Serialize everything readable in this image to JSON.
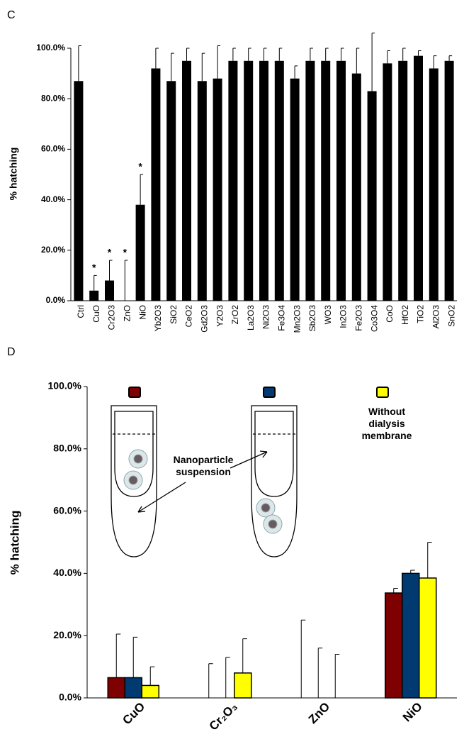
{
  "chart_data": [
    {
      "type": "bar",
      "panel": "C",
      "y_label": "% hatching",
      "categories": [
        "Ctrl",
        "CuO",
        "Cr2O3",
        "ZnO",
        "NiO",
        "Yb2O3",
        "SiO2",
        "CeO2",
        "Gd2O3",
        "Y2O3",
        "ZrO2",
        "La2O3",
        "Ni2O3",
        "Fe3O4",
        "Mn2O3",
        "Sb2O3",
        "WO3",
        "In2O3",
        "Fe2O3",
        "Co3O4",
        "CoO",
        "HfO2",
        "TiO2",
        "Al2O3",
        "SnO2"
      ],
      "series": [
        {
          "color": "#000000",
          "values": [
            87,
            4,
            8,
            0,
            38,
            92,
            87,
            95,
            87,
            88,
            95,
            95,
            95,
            95,
            88,
            95,
            95,
            95,
            90,
            83,
            94,
            95,
            97,
            92,
            95
          ],
          "errors": [
            14,
            6,
            8,
            16,
            12,
            8,
            11,
            5,
            11,
            13,
            5,
            5,
            5,
            5,
            5,
            5,
            5,
            5,
            10,
            23,
            5,
            5,
            2,
            5,
            2
          ]
        }
      ],
      "ylim": [
        0,
        100
      ],
      "yticks": [
        {
          "value": 0,
          "label": "0.0%"
        },
        {
          "value": 20,
          "label": "20.0%"
        },
        {
          "value": 40,
          "label": "40.0%"
        },
        {
          "value": 60,
          "label": "60.0%"
        },
        {
          "value": 80,
          "label": "80.0%"
        },
        {
          "value": 100,
          "label": "100.0%"
        }
      ],
      "annotations": [
        {
          "category": "CuO",
          "text": "*"
        },
        {
          "category": "Cr2O3",
          "text": "*"
        },
        {
          "category": "ZnO",
          "text": "*"
        },
        {
          "category": "NiO",
          "text": "*"
        }
      ]
    },
    {
      "type": "bar",
      "panel": "D",
      "y_label": "% hatching",
      "categories": [
        "CuO",
        "Cr₂O₃",
        "ZnO",
        "NiO"
      ],
      "series": [
        {
          "color": "#7f0000",
          "values": [
            6.5,
            0,
            0,
            33.7
          ],
          "errors": [
            14,
            11,
            25,
            1.5
          ]
        },
        {
          "color": "#003a70",
          "values": [
            6.5,
            0,
            0,
            40
          ],
          "errors": [
            13,
            13,
            16,
            1
          ]
        },
        {
          "name": "Without dialysis membrane",
          "color": "#ffff00",
          "values": [
            4,
            8,
            0,
            38.5
          ],
          "errors": [
            6,
            11,
            14,
            11.5
          ]
        }
      ],
      "ylim": [
        0,
        100
      ],
      "yticks": [
        {
          "value": 0,
          "label": "0.0%"
        },
        {
          "value": 20,
          "label": "20.0%"
        },
        {
          "value": 40,
          "label": "40.0%"
        },
        {
          "value": 60,
          "label": "60.0%"
        },
        {
          "value": 80,
          "label": "80.0%"
        },
        {
          "value": 100,
          "label": "100.0%"
        }
      ],
      "annotations": [
        {
          "text": "Nanoparticle suspension"
        }
      ]
    }
  ]
}
